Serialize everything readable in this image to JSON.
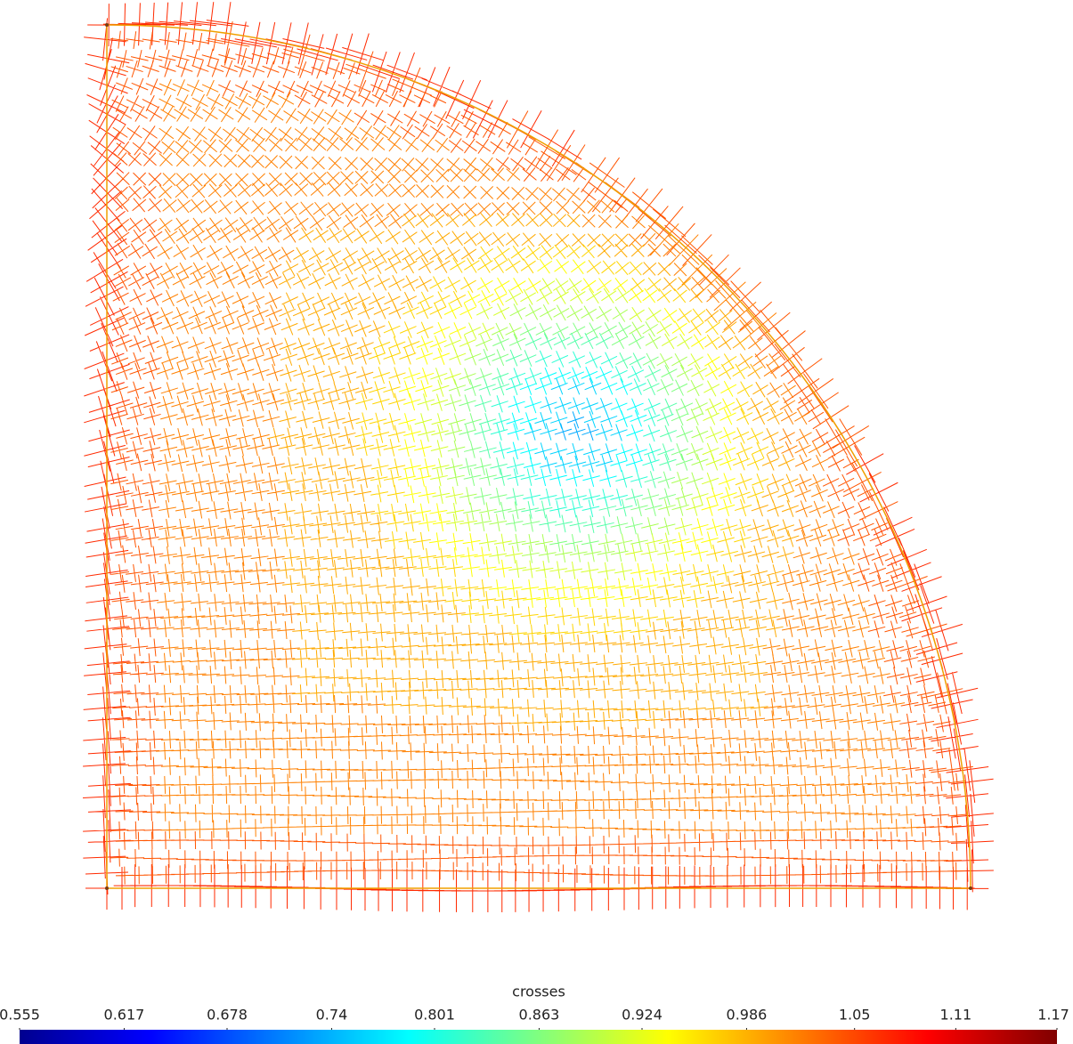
{
  "colorbar": {
    "title": "crosses",
    "range": [
      0.555,
      1.17
    ],
    "ticks": [
      0.555,
      0.617,
      0.678,
      0.74,
      0.801,
      0.863,
      0.924,
      0.986,
      1.05,
      1.11,
      1.17
    ]
  }
}
